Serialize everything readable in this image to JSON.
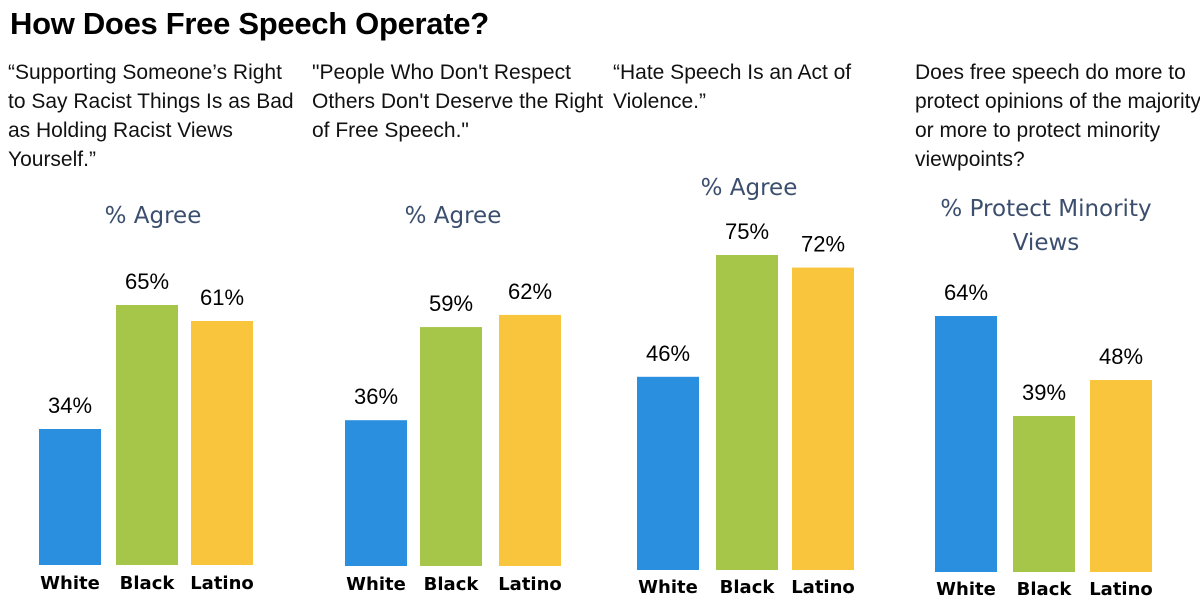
{
  "title": "How Does Free Speech Operate?",
  "colors": {
    "white": "#2b8fe0",
    "black": "#a6c64a",
    "latino": "#f9c53c",
    "metric_text": "#3b4e6e"
  },
  "panels": [
    {
      "question": "“Supporting Someone’s Right to Say Racist Things Is as Bad as Holding Racist Views Yourself.”",
      "metric": "% Agree"
    },
    {
      "question": "\"People Who Don't Respect Others Don't Deserve the Right of Free Speech.\"",
      "metric": "% Agree"
    },
    {
      "question": "“Hate Speech Is an Act of Violence.”",
      "metric": "% Agree"
    },
    {
      "question": "Does free speech do more to protect opinions of the majority or more to protect minority viewpoints?",
      "metric": "% Protect Minority Views"
    }
  ],
  "chart_data": [
    {
      "type": "bar",
      "title": "“Supporting Someone’s Right to Say Racist Things Is as Bad as Holding Racist Views Yourself.”",
      "ylabel": "% Agree",
      "categories": [
        "White",
        "Black",
        "Latino"
      ],
      "values": [
        34,
        65,
        61
      ],
      "value_labels": [
        "34%",
        "65%",
        "61%"
      ],
      "ylim": [
        0,
        100
      ]
    },
    {
      "type": "bar",
      "title": "\"People Who Don't Respect Others Don't Deserve the Right of Free Speech.\"",
      "ylabel": "% Agree",
      "categories": [
        "White",
        "Black",
        "Latino"
      ],
      "values": [
        36,
        59,
        62
      ],
      "value_labels": [
        "36%",
        "59%",
        "62%"
      ],
      "ylim": [
        0,
        100
      ]
    },
    {
      "type": "bar",
      "title": "“Hate Speech Is an Act of Violence.”",
      "ylabel": "% Agree",
      "categories": [
        "White",
        "Black",
        "Latino"
      ],
      "values": [
        46,
        75,
        72
      ],
      "value_labels": [
        "46%",
        "75%",
        "72%"
      ],
      "ylim": [
        0,
        100
      ]
    },
    {
      "type": "bar",
      "title": "Does free speech do more to protect opinions of the majority or more to protect minority viewpoints?",
      "ylabel": "% Protect Minority Views",
      "categories": [
        "White",
        "Black",
        "Latino"
      ],
      "values": [
        64,
        39,
        48
      ],
      "value_labels": [
        "64%",
        "39%",
        "48%"
      ],
      "ylim": [
        0,
        100
      ]
    }
  ]
}
